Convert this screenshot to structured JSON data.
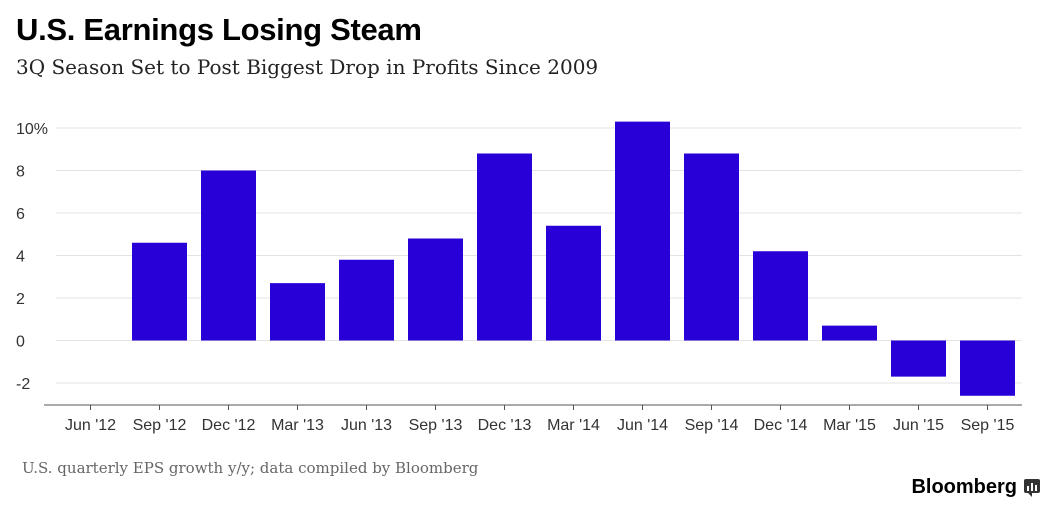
{
  "chart_data": {
    "type": "bar",
    "title": "U.S. Earnings Losing Steam",
    "subtitle": "3Q Season Set to Post Biggest Drop in Profits Since 2009",
    "categories": [
      "Jun '12",
      "Sep '12",
      "Dec '12",
      "Mar '13",
      "Jun '13",
      "Sep '13",
      "Dec '13",
      "Mar '14",
      "Jun '14",
      "Sep '14",
      "Dec '14",
      "Mar '15",
      "Jun '15",
      "Sep '15"
    ],
    "values": [
      null,
      4.6,
      8.0,
      2.7,
      3.8,
      4.8,
      8.8,
      5.4,
      10.3,
      8.8,
      4.2,
      0.7,
      -1.7,
      -2.6
    ],
    "y_ticks": [
      10,
      8,
      6,
      4,
      2,
      0,
      -2
    ],
    "y_tick_labels": [
      "10%",
      "8",
      "6",
      "4",
      "2",
      "0",
      "-2"
    ],
    "ylim": [
      -2.6,
      10.3
    ],
    "xlabel": "",
    "ylabel": "",
    "color": "#2800d7",
    "grid": true,
    "source": "U.S. quarterly EPS growth y/y; data compiled by Bloomberg",
    "brand": "Bloomberg"
  }
}
